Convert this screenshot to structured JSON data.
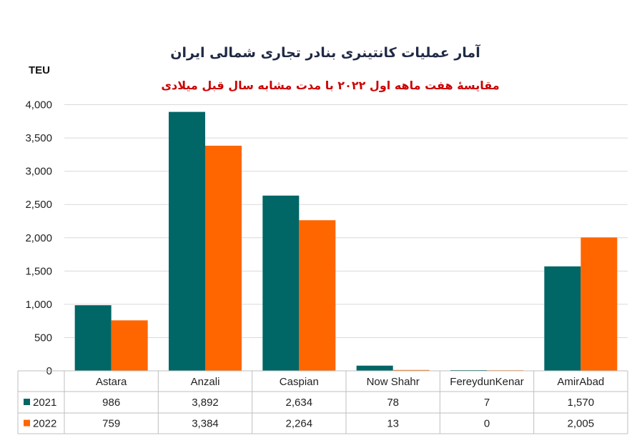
{
  "chart_data": {
    "type": "bar",
    "title": "آمار عملیات کانتینری بنادر تجاری شمالی ایران",
    "subtitle": "مقایسهٔ هفت ماهه اول ۲۰۲۲ با مدت مشابه سال قبل میلادی",
    "ylabel": "TEU",
    "xlabel": "",
    "ylim": [
      0,
      4500
    ],
    "yticks": [
      0,
      500,
      1000,
      1500,
      2000,
      2500,
      3000,
      3500,
      4000
    ],
    "ytick_labels": [
      "0",
      "500",
      "1,000",
      "1,500",
      "2,000",
      "2,500",
      "3,000",
      "3,500",
      "4,000"
    ],
    "grid": true,
    "legend": "data-table",
    "categories": [
      "Astara",
      "Anzali",
      "Caspian",
      "Now Shahr",
      "FereydunKenar",
      "AmirAbad"
    ],
    "series": [
      {
        "name": "2021",
        "color": "#006666",
        "values": [
          986,
          3892,
          2634,
          78,
          7,
          1570
        ],
        "labels": [
          "986",
          "3,892",
          "2,634",
          "78",
          "7",
          "1,570"
        ]
      },
      {
        "name": "2022",
        "color": "#ff6600",
        "values": [
          759,
          3384,
          2264,
          13,
          0,
          2005
        ],
        "labels": [
          "759",
          "3,384",
          "2,264",
          "13",
          "0",
          "2,005"
        ]
      }
    ]
  }
}
